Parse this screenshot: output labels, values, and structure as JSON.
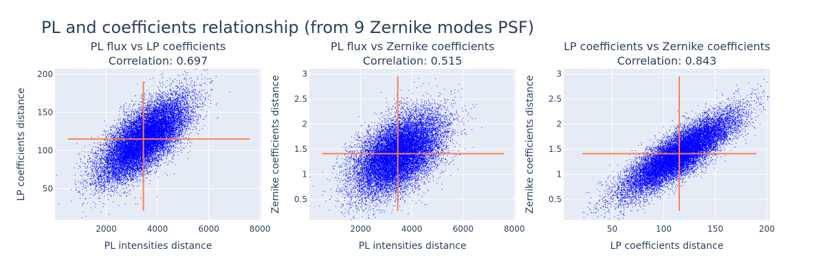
{
  "title": "PL and coefficients relationship (from 9 Zernike modes PSF)",
  "colors": {
    "plot_bg": "#e5ecf6",
    "grid": "#ffffff",
    "points": "#0000ff",
    "crosshair": "#ff7f50",
    "text": "#2a3f5f"
  },
  "chart_data": [
    {
      "type": "scatter",
      "title": "PL flux vs LP coefficients",
      "subtitle": "Correlation: 0.697",
      "xlabel": "PL intensities distance",
      "ylabel": "LP coefficients distance",
      "xlim": [
        0,
        8050
      ],
      "ylim": [
        9,
        207
      ],
      "xticks": [
        2000,
        4000,
        6000,
        8000
      ],
      "yticks": [
        50,
        100,
        150,
        200
      ],
      "xticklabels": [
        "2000",
        "4000",
        "6000",
        "8000"
      ],
      "yticklabels": [
        "50",
        "100",
        "150",
        "200"
      ],
      "cloud": {
        "x_mean": 3450,
        "x_sd": 850,
        "y_mean": 115,
        "y_sd": 27,
        "r": 0.697,
        "n": 16000
      },
      "crosshair": {
        "x": 3450,
        "y": 115,
        "x_range": [
          500,
          7600
        ],
        "y_range": [
          21,
          190
        ]
      },
      "legend": "none",
      "grid": true
    },
    {
      "type": "scatter",
      "title": "PL flux vs Zernike coefficients",
      "subtitle": "Correlation: 0.515",
      "xlabel": "PL intensities distance",
      "ylabel": "Zernike coefficients distance",
      "xlim": [
        0,
        8050
      ],
      "ylim": [
        0.09,
        3.1
      ],
      "xticks": [
        2000,
        4000,
        6000,
        8000
      ],
      "yticks": [
        0.5,
        1,
        1.5,
        2,
        2.5,
        3
      ],
      "xticklabels": [
        "2000",
        "4000",
        "6000",
        "8000"
      ],
      "yticklabels": [
        "0.5",
        "1",
        "1.5",
        "2",
        "2.5",
        "3"
      ],
      "cloud": {
        "x_mean": 3450,
        "x_sd": 850,
        "y_mean": 1.41,
        "y_sd": 0.4,
        "r": 0.515,
        "n": 16000
      },
      "crosshair": {
        "x": 3450,
        "y": 1.41,
        "x_range": [
          500,
          7600
        ],
        "y_range": [
          0.27,
          2.95
        ]
      },
      "legend": "none",
      "grid": true
    },
    {
      "type": "scatter",
      "title": "LP coefficients vs Zernike coefficients",
      "subtitle": "Correlation: 0.843",
      "xlabel": "LP coefficients distance",
      "ylabel": "Zernike coefficients distance",
      "xlim": [
        3,
        203
      ],
      "ylim": [
        0.09,
        3.1
      ],
      "xticks": [
        50,
        100,
        150,
        200
      ],
      "yticks": [
        0.5,
        1,
        1.5,
        2,
        2.5,
        3
      ],
      "xticklabels": [
        "50",
        "100",
        "150",
        "200"
      ],
      "yticklabels": [
        "0.5",
        "1",
        "1.5",
        "2",
        "2.5",
        "3"
      ],
      "cloud": {
        "x_mean": 115,
        "x_sd": 27,
        "y_mean": 1.41,
        "y_sd": 0.4,
        "r": 0.843,
        "n": 16000
      },
      "crosshair": {
        "x": 115,
        "y": 1.41,
        "x_range": [
          21,
          190
        ],
        "y_range": [
          0.27,
          2.95
        ]
      },
      "legend": "none",
      "grid": true
    }
  ]
}
